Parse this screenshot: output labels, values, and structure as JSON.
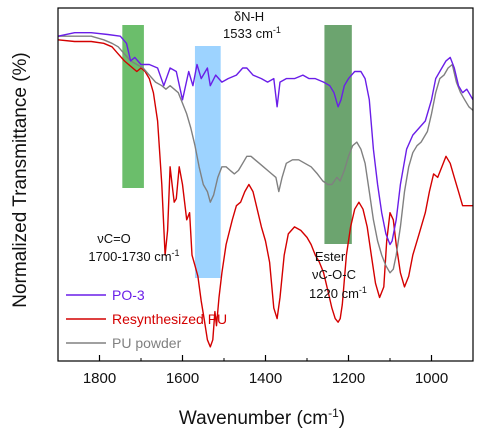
{
  "chart_data": {
    "type": "line",
    "title": "",
    "xlabel": "Wavenumber (cm",
    "xlabel_sup": "-1",
    "xlabel_close": ")",
    "ylabel": "Normalized Transmittance (%)",
    "xlim": [
      1900,
      900
    ],
    "x_reversed": true,
    "ylim": [
      0,
      1
    ],
    "y_ticks_shown": false,
    "x_ticks": [
      1800,
      1600,
      1400,
      1200,
      1000
    ],
    "grid": false,
    "legend_position": "bottom-left",
    "series": [
      {
        "name": "PO-3",
        "color": "#6a1ee8",
        "points": [
          [
            1900,
            0.92
          ],
          [
            1860,
            0.93
          ],
          [
            1820,
            0.93
          ],
          [
            1780,
            0.925
          ],
          [
            1750,
            0.92
          ],
          [
            1735,
            0.9
          ],
          [
            1725,
            0.85
          ],
          [
            1715,
            0.86
          ],
          [
            1700,
            0.84
          ],
          [
            1680,
            0.84
          ],
          [
            1660,
            0.83
          ],
          [
            1645,
            0.78
          ],
          [
            1630,
            0.83
          ],
          [
            1615,
            0.82
          ],
          [
            1600,
            0.74
          ],
          [
            1585,
            0.82
          ],
          [
            1575,
            0.78
          ],
          [
            1565,
            0.84
          ],
          [
            1555,
            0.8
          ],
          [
            1540,
            0.83
          ],
          [
            1533,
            0.78
          ],
          [
            1520,
            0.81
          ],
          [
            1505,
            0.79
          ],
          [
            1490,
            0.8
          ],
          [
            1470,
            0.81
          ],
          [
            1455,
            0.83
          ],
          [
            1445,
            0.83
          ],
          [
            1430,
            0.81
          ],
          [
            1410,
            0.8
          ],
          [
            1395,
            0.79
          ],
          [
            1380,
            0.8
          ],
          [
            1372,
            0.72
          ],
          [
            1365,
            0.79
          ],
          [
            1350,
            0.8
          ],
          [
            1330,
            0.8
          ],
          [
            1310,
            0.81
          ],
          [
            1295,
            0.8
          ],
          [
            1280,
            0.8
          ],
          [
            1260,
            0.79
          ],
          [
            1245,
            0.78
          ],
          [
            1235,
            0.76
          ],
          [
            1225,
            0.72
          ],
          [
            1218,
            0.74
          ],
          [
            1210,
            0.78
          ],
          [
            1200,
            0.8
          ],
          [
            1185,
            0.82
          ],
          [
            1170,
            0.82
          ],
          [
            1160,
            0.8
          ],
          [
            1150,
            0.74
          ],
          [
            1140,
            0.6
          ],
          [
            1130,
            0.5
          ],
          [
            1120,
            0.42
          ],
          [
            1110,
            0.36
          ],
          [
            1100,
            0.33
          ],
          [
            1095,
            0.34
          ],
          [
            1085,
            0.4
          ],
          [
            1075,
            0.5
          ],
          [
            1060,
            0.6
          ],
          [
            1045,
            0.64
          ],
          [
            1030,
            0.66
          ],
          [
            1015,
            0.68
          ],
          [
            1000,
            0.74
          ],
          [
            990,
            0.8
          ],
          [
            980,
            0.82
          ],
          [
            965,
            0.85
          ],
          [
            955,
            0.86
          ],
          [
            945,
            0.83
          ],
          [
            935,
            0.78
          ],
          [
            925,
            0.76
          ],
          [
            915,
            0.77
          ],
          [
            900,
            0.74
          ]
        ]
      },
      {
        "name": "Resynthesized PU",
        "color": "#d40000",
        "points": [
          [
            1900,
            0.91
          ],
          [
            1860,
            0.905
          ],
          [
            1820,
            0.905
          ],
          [
            1790,
            0.9
          ],
          [
            1770,
            0.89
          ],
          [
            1755,
            0.87
          ],
          [
            1740,
            0.85
          ],
          [
            1730,
            0.84
          ],
          [
            1720,
            0.83
          ],
          [
            1710,
            0.82
          ],
          [
            1700,
            0.83
          ],
          [
            1690,
            0.82
          ],
          [
            1680,
            0.8
          ],
          [
            1670,
            0.76
          ],
          [
            1660,
            0.68
          ],
          [
            1650,
            0.5
          ],
          [
            1642,
            0.3
          ],
          [
            1636,
            0.37
          ],
          [
            1630,
            0.55
          ],
          [
            1625,
            0.5
          ],
          [
            1620,
            0.45
          ],
          [
            1615,
            0.46
          ],
          [
            1608,
            0.55
          ],
          [
            1600,
            0.5
          ],
          [
            1595,
            0.45
          ],
          [
            1590,
            0.4
          ],
          [
            1583,
            0.42
          ],
          [
            1577,
            0.3
          ],
          [
            1570,
            0.27
          ],
          [
            1563,
            0.24
          ],
          [
            1555,
            0.17
          ],
          [
            1548,
            0.12
          ],
          [
            1540,
            0.06
          ],
          [
            1533,
            0.04
          ],
          [
            1527,
            0.06
          ],
          [
            1522,
            0.14
          ],
          [
            1518,
            0.1
          ],
          [
            1512,
            0.18
          ],
          [
            1505,
            0.25
          ],
          [
            1495,
            0.33
          ],
          [
            1480,
            0.4
          ],
          [
            1470,
            0.44
          ],
          [
            1460,
            0.45
          ],
          [
            1450,
            0.48
          ],
          [
            1440,
            0.5
          ],
          [
            1430,
            0.48
          ],
          [
            1420,
            0.43
          ],
          [
            1410,
            0.38
          ],
          [
            1400,
            0.34
          ],
          [
            1390,
            0.28
          ],
          [
            1380,
            0.15
          ],
          [
            1372,
            0.12
          ],
          [
            1365,
            0.18
          ],
          [
            1355,
            0.3
          ],
          [
            1345,
            0.36
          ],
          [
            1330,
            0.38
          ],
          [
            1315,
            0.37
          ],
          [
            1300,
            0.35
          ],
          [
            1290,
            0.33
          ],
          [
            1280,
            0.3
          ],
          [
            1270,
            0.28
          ],
          [
            1260,
            0.25
          ],
          [
            1250,
            0.2
          ],
          [
            1240,
            0.15
          ],
          [
            1232,
            0.12
          ],
          [
            1225,
            0.11
          ],
          [
            1220,
            0.12
          ],
          [
            1215,
            0.16
          ],
          [
            1205,
            0.3
          ],
          [
            1195,
            0.38
          ],
          [
            1185,
            0.43
          ],
          [
            1175,
            0.45
          ],
          [
            1165,
            0.43
          ],
          [
            1155,
            0.38
          ],
          [
            1145,
            0.3
          ],
          [
            1135,
            0.22
          ],
          [
            1125,
            0.18
          ],
          [
            1115,
            0.21
          ],
          [
            1108,
            0.34
          ],
          [
            1100,
            0.42
          ],
          [
            1092,
            0.4
          ],
          [
            1085,
            0.33
          ],
          [
            1075,
            0.25
          ],
          [
            1065,
            0.21
          ],
          [
            1055,
            0.24
          ],
          [
            1045,
            0.3
          ],
          [
            1030,
            0.36
          ],
          [
            1015,
            0.42
          ],
          [
            1005,
            0.48
          ],
          [
            995,
            0.53
          ],
          [
            985,
            0.52
          ],
          [
            975,
            0.55
          ],
          [
            965,
            0.58
          ],
          [
            955,
            0.56
          ],
          [
            945,
            0.52
          ],
          [
            935,
            0.48
          ],
          [
            925,
            0.44
          ],
          [
            915,
            0.44
          ],
          [
            900,
            0.44
          ]
        ]
      },
      {
        "name": "PU powder",
        "color": "#808080",
        "points": [
          [
            1900,
            0.92
          ],
          [
            1860,
            0.92
          ],
          [
            1820,
            0.92
          ],
          [
            1790,
            0.91
          ],
          [
            1770,
            0.9
          ],
          [
            1755,
            0.89
          ],
          [
            1740,
            0.87
          ],
          [
            1725,
            0.85
          ],
          [
            1710,
            0.84
          ],
          [
            1695,
            0.83
          ],
          [
            1680,
            0.81
          ],
          [
            1665,
            0.79
          ],
          [
            1650,
            0.78
          ],
          [
            1640,
            0.77
          ],
          [
            1630,
            0.78
          ],
          [
            1620,
            0.77
          ],
          [
            1610,
            0.76
          ],
          [
            1600,
            0.73
          ],
          [
            1590,
            0.7
          ],
          [
            1580,
            0.66
          ],
          [
            1570,
            0.61
          ],
          [
            1560,
            0.55
          ],
          [
            1550,
            0.5
          ],
          [
            1540,
            0.48
          ],
          [
            1533,
            0.45
          ],
          [
            1525,
            0.47
          ],
          [
            1515,
            0.52
          ],
          [
            1505,
            0.55
          ],
          [
            1495,
            0.55
          ],
          [
            1485,
            0.54
          ],
          [
            1475,
            0.53
          ],
          [
            1465,
            0.54
          ],
          [
            1455,
            0.56
          ],
          [
            1445,
            0.58
          ],
          [
            1435,
            0.58
          ],
          [
            1425,
            0.57
          ],
          [
            1415,
            0.56
          ],
          [
            1405,
            0.55
          ],
          [
            1395,
            0.54
          ],
          [
            1385,
            0.53
          ],
          [
            1375,
            0.52
          ],
          [
            1368,
            0.48
          ],
          [
            1360,
            0.52
          ],
          [
            1350,
            0.56
          ],
          [
            1335,
            0.57
          ],
          [
            1320,
            0.57
          ],
          [
            1305,
            0.56
          ],
          [
            1290,
            0.55
          ],
          [
            1275,
            0.53
          ],
          [
            1262,
            0.51
          ],
          [
            1250,
            0.5
          ],
          [
            1240,
            0.5
          ],
          [
            1228,
            0.52
          ],
          [
            1220,
            0.51
          ],
          [
            1210,
            0.54
          ],
          [
            1200,
            0.58
          ],
          [
            1190,
            0.61
          ],
          [
            1180,
            0.62
          ],
          [
            1170,
            0.6
          ],
          [
            1160,
            0.56
          ],
          [
            1150,
            0.48
          ],
          [
            1140,
            0.4
          ],
          [
            1130,
            0.34
          ],
          [
            1120,
            0.3
          ],
          [
            1110,
            0.27
          ],
          [
            1100,
            0.25
          ],
          [
            1092,
            0.26
          ],
          [
            1085,
            0.3
          ],
          [
            1075,
            0.38
          ],
          [
            1065,
            0.48
          ],
          [
            1055,
            0.55
          ],
          [
            1045,
            0.59
          ],
          [
            1035,
            0.61
          ],
          [
            1025,
            0.62
          ],
          [
            1010,
            0.65
          ],
          [
            1000,
            0.7
          ],
          [
            990,
            0.76
          ],
          [
            980,
            0.8
          ],
          [
            970,
            0.81
          ],
          [
            960,
            0.83
          ],
          [
            950,
            0.84
          ],
          [
            940,
            0.79
          ],
          [
            930,
            0.76
          ],
          [
            920,
            0.74
          ],
          [
            910,
            0.72
          ],
          [
            900,
            0.71
          ]
        ]
      }
    ],
    "highlight_bands": [
      {
        "x_range": [
          1745,
          1693
        ],
        "color": "#3aa83a",
        "opacity": 0.75
      },
      {
        "x_range": [
          1570,
          1508
        ],
        "color": "#5cb6ff",
        "opacity": 0.6
      },
      {
        "x_range": [
          1258,
          1192
        ],
        "color": "#2e7d32",
        "opacity": 0.7
      }
    ],
    "annotations": {
      "co_label": "νC=O",
      "co_range": "1700-1730 cm",
      "co_range_sup": "-1",
      "nh_label": "δN-H",
      "nh_value": "1533 cm",
      "nh_value_sup": "-1",
      "ester_label": "Ester",
      "coc_label": "νC-O-C",
      "coc_value": "1220 cm",
      "coc_value_sup": "-1"
    }
  }
}
